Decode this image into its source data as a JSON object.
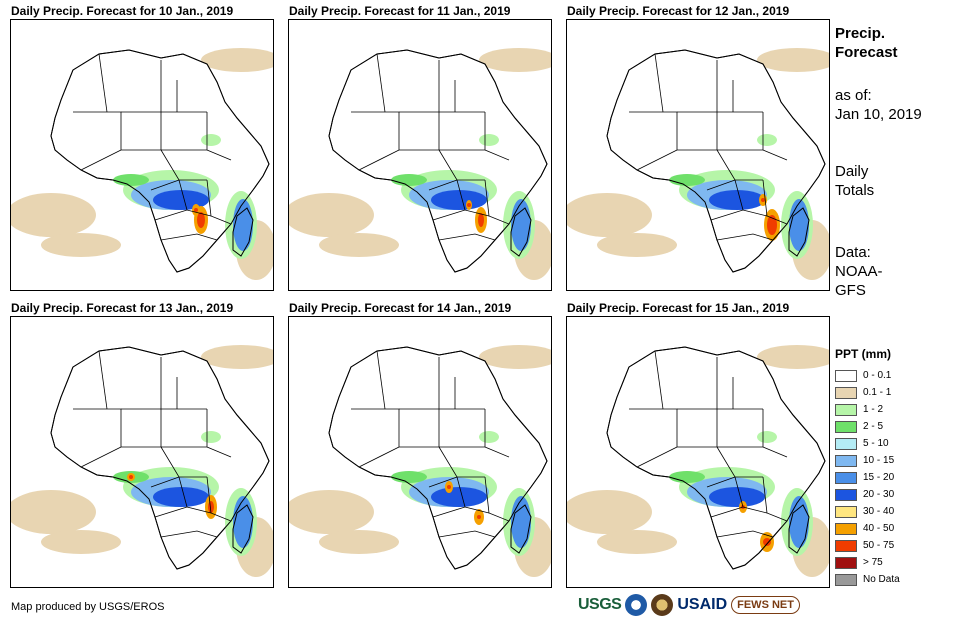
{
  "panels": [
    {
      "title": "Daily Precip. Forecast for 10 Jan., 2019"
    },
    {
      "title": "Daily Precip. Forecast for 11 Jan., 2019"
    },
    {
      "title": "Daily Precip. Forecast for 12 Jan., 2019"
    },
    {
      "title": "Daily Precip. Forecast for 13 Jan., 2019"
    },
    {
      "title": "Daily Precip. Forecast for 14 Jan., 2019"
    },
    {
      "title": "Daily Precip. Forecast for 15 Jan., 2019"
    }
  ],
  "sidebar": {
    "title_line1": "Precip.",
    "title_line2": "Forecast",
    "asof_label": "as of:",
    "asof_date": "Jan 10, 2019",
    "totals_line1": "Daily",
    "totals_line2": "Totals",
    "data_line1": "Data:",
    "data_line2": "NOAA-",
    "data_line3": "GFS"
  },
  "legend": {
    "title": "PPT (mm)",
    "items": [
      {
        "label": "0 - 0.1",
        "color": "#ffffff"
      },
      {
        "label": "0.1 - 1",
        "color": "#e8d5b2"
      },
      {
        "label": "1 - 2",
        "color": "#b6f5a8"
      },
      {
        "label": "2 - 5",
        "color": "#6fe06a"
      },
      {
        "label": "5 - 10",
        "color": "#b4ecf5"
      },
      {
        "label": "10 - 15",
        "color": "#7fb8f0"
      },
      {
        "label": "15 - 20",
        "color": "#4a8fe8"
      },
      {
        "label": "20 - 30",
        "color": "#1c55e0"
      },
      {
        "label": "30 - 40",
        "color": "#ffe680"
      },
      {
        "label": "40 - 50",
        "color": "#f5a000"
      },
      {
        "label": "50 - 75",
        "color": "#f03c00"
      },
      {
        "label": "> 75",
        "color": "#a01010"
      },
      {
        "label": "No Data",
        "color": "#999999"
      }
    ]
  },
  "footer": {
    "credit": "Map produced by USGS/EROS",
    "logos": [
      "USGS",
      "NOAA",
      "DOI",
      "USAID",
      "FEWS NET"
    ]
  }
}
